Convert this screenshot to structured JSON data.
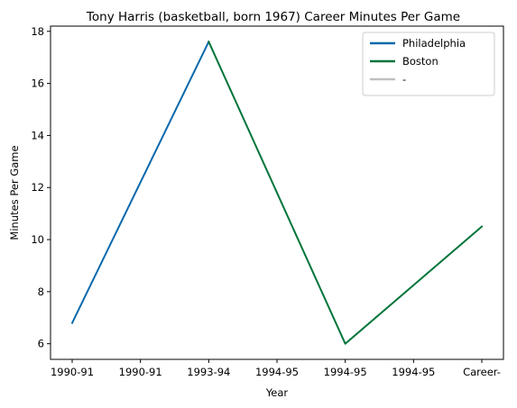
{
  "chart_data": {
    "type": "line",
    "title": "Tony Harris (basketball, born 1967) Career Minutes Per Game",
    "xlabel": "Year",
    "ylabel": "Minutes Per Game",
    "categories": [
      "1990-91",
      "1990-91",
      "1993-94",
      "1994-95",
      "1994-95",
      "1994-95",
      "Career-"
    ],
    "ylim": [
      5.4,
      18.2
    ],
    "yticks": [
      6,
      8,
      10,
      12,
      14,
      16,
      18
    ],
    "grid": false,
    "legend_position": "upper right",
    "series": [
      {
        "name": "Philadelphia",
        "color": "#0868ac",
        "points": [
          {
            "index": 0,
            "y": 6.8
          },
          {
            "index": 2,
            "y": 17.6
          }
        ]
      },
      {
        "name": "Boston",
        "color": "#00753a",
        "points": [
          {
            "index": 2,
            "y": 17.6
          },
          {
            "index": 4,
            "y": 6.0
          },
          {
            "index": 6,
            "y": 10.5
          }
        ]
      },
      {
        "name": "-",
        "color": "#c0c0c0",
        "points": []
      }
    ]
  }
}
